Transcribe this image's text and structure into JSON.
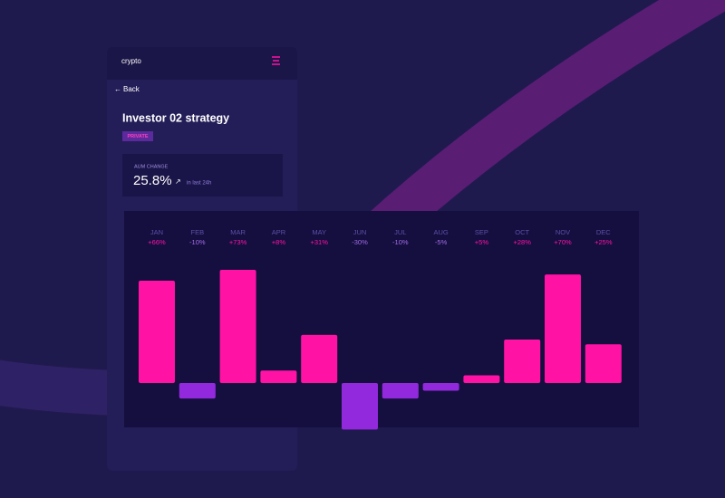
{
  "app": {
    "name": "crypto",
    "back": "Back"
  },
  "page": {
    "title": "Investor 02 strategy",
    "badge": "PRIVATE"
  },
  "stat": {
    "label": "AUM CHANGE",
    "value": "25.8%",
    "note": "in last 24h"
  },
  "chart_data": {
    "type": "bar",
    "categories": [
      "JAN",
      "FEB",
      "MAR",
      "APR",
      "MAY",
      "JUN",
      "JUL",
      "AUG",
      "SEP",
      "OCT",
      "NOV",
      "DEC"
    ],
    "values": [
      66,
      -10,
      73,
      8,
      31,
      -30,
      -10,
      -5,
      5,
      28,
      70,
      25
    ],
    "value_labels": [
      "+66%",
      "-10%",
      "+73%",
      "+8%",
      "+31%",
      "-30%",
      "-10%",
      "-5%",
      "+5%",
      "+28%",
      "+70%",
      "+25%"
    ],
    "colors": {
      "positive": "#ff12a4",
      "negative": "#9329dd"
    }
  }
}
